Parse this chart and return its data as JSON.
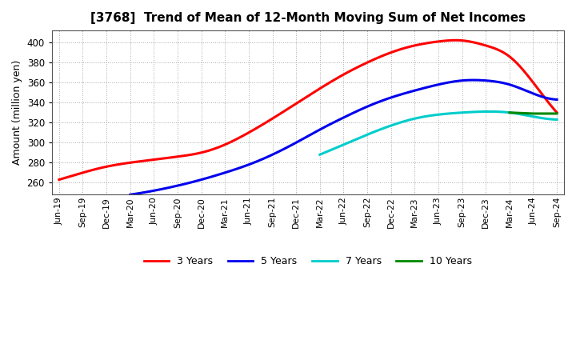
{
  "title": "[3768]  Trend of Mean of 12-Month Moving Sum of Net Incomes",
  "ylabel": "Amount (million yen)",
  "ylim": [
    248,
    412
  ],
  "yticks": [
    260,
    280,
    300,
    320,
    340,
    360,
    380,
    400
  ],
  "background_color": "#ffffff",
  "x_labels": [
    "Jun-19",
    "Sep-19",
    "Dec-19",
    "Mar-20",
    "Jun-20",
    "Sep-20",
    "Dec-20",
    "Mar-21",
    "Jun-21",
    "Sep-21",
    "Dec-21",
    "Mar-22",
    "Jun-22",
    "Sep-22",
    "Dec-22",
    "Mar-23",
    "Jun-23",
    "Sep-23",
    "Dec-23",
    "Mar-24",
    "Jun-24",
    "Sep-24"
  ],
  "series": [
    {
      "label": "3 Years",
      "color": "#ff0000",
      "x": [
        0,
        1,
        2,
        3,
        4,
        5,
        6,
        7,
        8,
        9,
        10,
        11,
        12,
        13,
        14,
        15,
        16,
        17,
        18,
        19,
        20,
        21
      ],
      "y": [
        263,
        270,
        276,
        280,
        283,
        286,
        290,
        298,
        310,
        324,
        339,
        354,
        368,
        380,
        390,
        397,
        401,
        402,
        397,
        386,
        360,
        330
      ]
    },
    {
      "label": "5 Years",
      "color": "#0000ee",
      "x": [
        3,
        4,
        5,
        6,
        7,
        8,
        9,
        10,
        11,
        12,
        13,
        14,
        15,
        16,
        17,
        18,
        19,
        20,
        21
      ],
      "y": [
        248,
        252,
        257,
        263,
        270,
        278,
        288,
        300,
        313,
        325,
        336,
        345,
        352,
        358,
        362,
        362,
        358,
        349,
        343
      ]
    },
    {
      "label": "7 Years",
      "color": "#00cccc",
      "x": [
        11,
        12,
        13,
        14,
        15,
        16,
        17,
        18,
        19,
        20,
        21
      ],
      "y": [
        288,
        298,
        308,
        317,
        324,
        328,
        330,
        331,
        330,
        326,
        323
      ]
    },
    {
      "label": "10 Years",
      "color": "#008800",
      "x": [
        19,
        20,
        21
      ],
      "y": [
        330,
        329,
        329
      ]
    }
  ],
  "legend_entries": [
    {
      "label": "3 Years",
      "color": "#ff0000"
    },
    {
      "label": "5 Years",
      "color": "#0000ee"
    },
    {
      "label": "7 Years",
      "color": "#00cccc"
    },
    {
      "label": "10 Years",
      "color": "#008800"
    }
  ]
}
